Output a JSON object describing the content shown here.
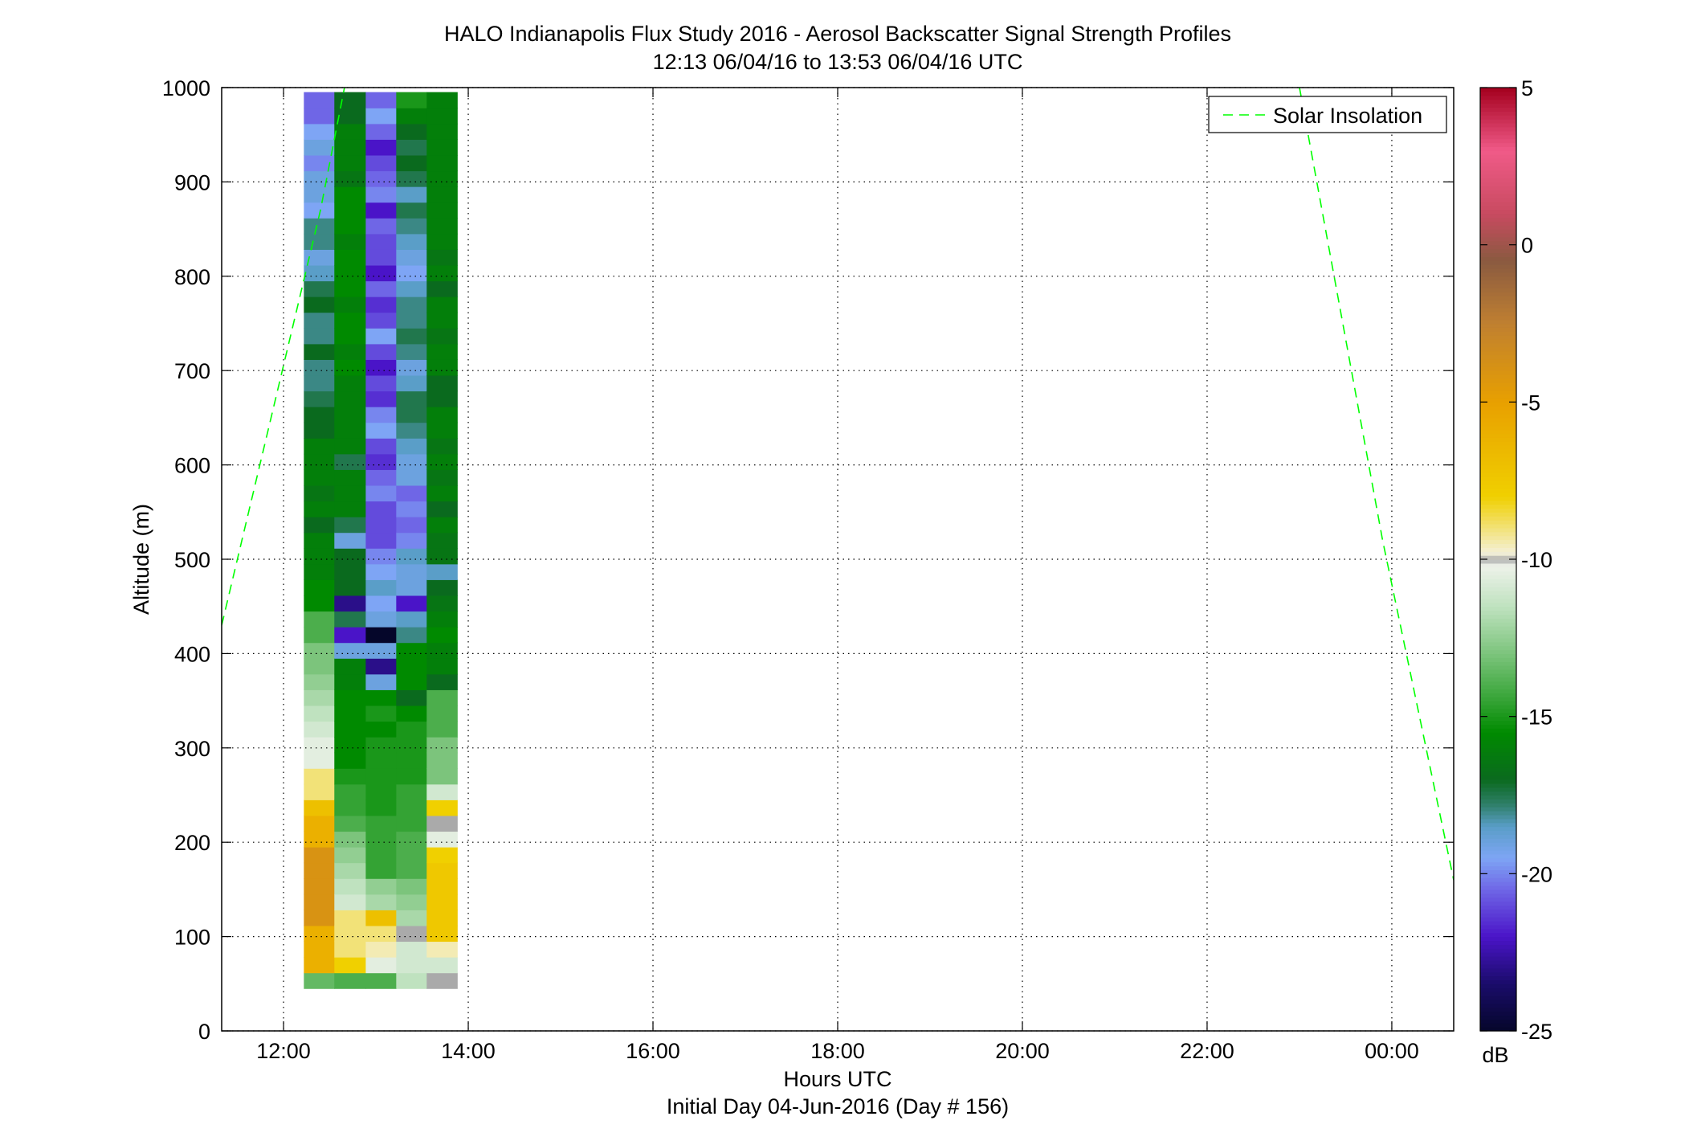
{
  "chart_data": {
    "type": "heatmap",
    "title": "HALO Indianapolis Flux Study 2016 - Aerosol Backscatter Signal Strength Profiles",
    "subtitle": "12:13 06/04/16 to 13:53 06/04/16  UTC",
    "xlabel": "Hours UTC",
    "xlabel2": "Initial Day 04-Jun-2016 (Day # 156)",
    "ylabel": "Altitude (m)",
    "xlim": [
      11.33,
      24.67
    ],
    "ylim": [
      0,
      1000
    ],
    "x_ticks": [
      {
        "value": 12,
        "label": "12:00"
      },
      {
        "value": 14,
        "label": "14:00"
      },
      {
        "value": 16,
        "label": "16:00"
      },
      {
        "value": 18,
        "label": "18:00"
      },
      {
        "value": 20,
        "label": "20:00"
      },
      {
        "value": 22,
        "label": "22:00"
      },
      {
        "value": 24,
        "label": "00:00"
      }
    ],
    "y_ticks": [
      {
        "value": 0,
        "label": "0"
      },
      {
        "value": 100,
        "label": "100"
      },
      {
        "value": 200,
        "label": "200"
      },
      {
        "value": 300,
        "label": "300"
      },
      {
        "value": 400,
        "label": "400"
      },
      {
        "value": 500,
        "label": "500"
      },
      {
        "value": 600,
        "label": "600"
      },
      {
        "value": 700,
        "label": "700"
      },
      {
        "value": 800,
        "label": "800"
      },
      {
        "value": 900,
        "label": "900"
      },
      {
        "value": 1000,
        "label": "1000"
      }
    ],
    "grid": true,
    "legend": {
      "placement": "top-right",
      "entries": [
        "Solar Insolation"
      ]
    },
    "colorbar": {
      "label": "dB",
      "range": [
        -25,
        5
      ],
      "ticks": [
        {
          "value": 5,
          "label": "5"
        },
        {
          "value": 0,
          "label": "0"
        },
        {
          "value": -5,
          "label": "-5"
        },
        {
          "value": -10,
          "label": "-10"
        },
        {
          "value": -15,
          "label": "-15"
        },
        {
          "value": -20,
          "label": "-20"
        },
        {
          "value": -25,
          "label": "-25"
        }
      ],
      "stops": [
        {
          "v": -25,
          "color": "#05062a"
        },
        {
          "v": -23.5,
          "color": "#1a0c6a"
        },
        {
          "v": -22,
          "color": "#4a14c8"
        },
        {
          "v": -20.5,
          "color": "#6f66e6"
        },
        {
          "v": -19.5,
          "color": "#7ea5f5"
        },
        {
          "v": -18.5,
          "color": "#5a9ec8"
        },
        {
          "v": -17.8,
          "color": "#2f7f6a"
        },
        {
          "v": -17,
          "color": "#0a6a1e"
        },
        {
          "v": -15.5,
          "color": "#008a00"
        },
        {
          "v": -14.5,
          "color": "#34a334"
        },
        {
          "v": -13,
          "color": "#7cc47c"
        },
        {
          "v": -11.5,
          "color": "#bfe2bf"
        },
        {
          "v": -10.2,
          "color": "#eef2ea"
        },
        {
          "v": -10,
          "color": "#aaaaaa"
        },
        {
          "v": -9.8,
          "color": "#f4f0d8"
        },
        {
          "v": -8,
          "color": "#f0d000"
        },
        {
          "v": -5,
          "color": "#e8a000"
        },
        {
          "v": -2.5,
          "color": "#c08030"
        },
        {
          "v": -0.5,
          "color": "#8a5a40"
        },
        {
          "v": 1,
          "color": "#c84a60"
        },
        {
          "v": 3,
          "color": "#f05a88"
        },
        {
          "v": 5,
          "color": "#a4001e"
        }
      ]
    },
    "heatmap": {
      "x_edges": [
        12.22,
        12.55,
        12.89,
        13.22,
        13.55,
        13.88
      ],
      "y_bottom": 45,
      "y_step": 16.67,
      "rows_from_bottom": 57,
      "columns": [
        [
          -13.5,
          -6,
          -6,
          -6,
          -4,
          -4,
          -4,
          -4,
          -4,
          -6,
          -6,
          -7,
          -9,
          -9,
          -10.5,
          -10.5,
          -11,
          -11.5,
          -12,
          -12.5,
          -13,
          -13,
          -14,
          -14,
          -15.5,
          -15.5,
          -16,
          -16,
          -16,
          -17,
          -16,
          -16.5,
          -16,
          -16,
          -16,
          -17,
          -17,
          -17.5,
          -18,
          -18,
          -17,
          -18,
          -18,
          -17,
          -17.5,
          -18.5,
          -19,
          -18,
          -18,
          -19.5,
          -19,
          -19,
          -20,
          -19,
          -19.5,
          -20.5,
          -20.5
        ],
        [
          -14,
          -8,
          -9,
          -9,
          -9,
          -11,
          -11.5,
          -12,
          -12.5,
          -13,
          -14,
          -14.5,
          -14.5,
          -15,
          -15.5,
          -15.5,
          -15.5,
          -15.5,
          -15.5,
          -16,
          -16,
          -19,
          -22,
          -17.5,
          -23,
          -17,
          -17,
          -17,
          -19,
          -17.5,
          -16,
          -16,
          -16,
          -17.5,
          -16,
          -16,
          -16,
          -16,
          -16,
          -15.5,
          -16,
          -15.5,
          -15.5,
          -16,
          -15.5,
          -15.5,
          -15.5,
          -16,
          -15.5,
          -15.5,
          -15.5,
          -16.5,
          -16,
          -16,
          -16,
          -17,
          -17
        ],
        [
          -14,
          -10.5,
          -9.5,
          -9,
          -7,
          -12,
          -12.5,
          -14.5,
          -14.5,
          -14.5,
          -14.5,
          -15,
          -15,
          -15,
          -15,
          -15,
          -15.5,
          -15,
          -15.5,
          -19,
          -23,
          -19,
          -25,
          -19,
          -19.5,
          -18.5,
          -19.5,
          -20,
          -21,
          -21,
          -21,
          -20,
          -20.5,
          -21.5,
          -21,
          -19.5,
          -20,
          -21.5,
          -21,
          -22,
          -21,
          -19.5,
          -21,
          -21.5,
          -20.5,
          -22,
          -21,
          -21,
          -20.5,
          -22,
          -20,
          -20.5,
          -21,
          -22,
          -20.5,
          -19.5,
          -20.5
        ],
        [
          -11.5,
          -11,
          -11,
          -10,
          -12,
          -12.5,
          -13,
          -14,
          -14,
          -14,
          -14.5,
          -14.5,
          -14.5,
          -15,
          -15,
          -15,
          -15,
          -15.5,
          -17,
          -15.5,
          -15.5,
          -15.5,
          -18,
          -18.5,
          -22,
          -19,
          -19,
          -18.5,
          -20,
          -20.5,
          -20,
          -20.5,
          -19,
          -19,
          -18.5,
          -18,
          -17.5,
          -17.5,
          -18.5,
          -19,
          -18,
          -17.5,
          -18,
          -18,
          -18.5,
          -19.5,
          -19,
          -18.5,
          -18,
          -17.5,
          -18.5,
          -17.5,
          -17,
          -17.5,
          -17,
          -16,
          -15
        ],
        [
          -10,
          -11,
          -9.5,
          -7.5,
          -7.5,
          -7.5,
          -7.5,
          -7.5,
          -8,
          -10.5,
          -10,
          -8,
          -11,
          -13,
          -13,
          -13,
          -14,
          -14,
          -14,
          -17,
          -16,
          -16,
          -15.5,
          -16,
          -16.5,
          -17,
          -18.5,
          -16.5,
          -16.5,
          -16,
          -17,
          -16,
          -16.5,
          -16,
          -16.5,
          -16,
          -16,
          -17,
          -17,
          -16,
          -16,
          -16.5,
          -16,
          -16,
          -17,
          -16,
          -16.5,
          -16,
          -16,
          -16,
          -16,
          -16,
          -16,
          -16,
          -16,
          -16,
          -16
        ]
      ]
    },
    "series": [
      {
        "name": "Solar Insolation",
        "style": "dashed",
        "color": "#00ff00",
        "segments": [
          {
            "x": [
              11.33,
              12.4,
              12.66
            ],
            "y": [
              430,
              870,
              1000
            ]
          },
          {
            "x": [
              23.0,
              23.9,
              24.67
            ],
            "y": [
              1000,
              520,
              160
            ]
          }
        ]
      }
    ]
  }
}
